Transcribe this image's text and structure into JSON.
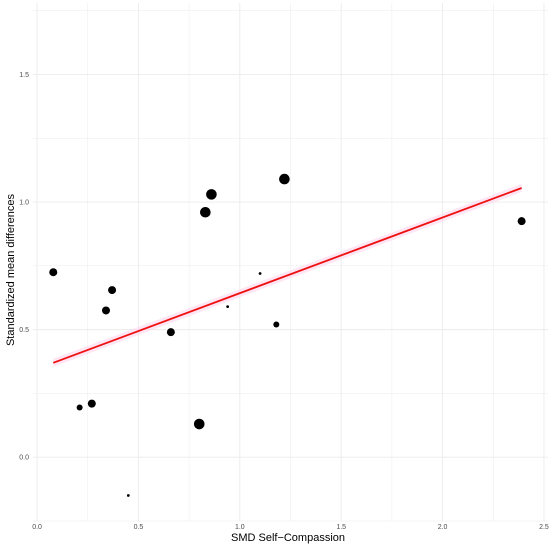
{
  "chart_data": {
    "type": "scatter",
    "title": "",
    "xlabel": "SMD Self−Compassion",
    "ylabel": "Standardized mean differences",
    "xlim": [
      -0.02,
      2.52
    ],
    "ylim": [
      -0.25,
      1.78
    ],
    "x_ticks": [
      0.0,
      0.5,
      1.0,
      1.5,
      2.0,
      2.5
    ],
    "x_tick_labels": [
      "0.0",
      "0.5",
      "1.0",
      "1.5",
      "2.0",
      "2.5"
    ],
    "y_ticks": [
      0.0,
      0.5,
      1.0,
      1.5
    ],
    "y_tick_labels": [
      "0.0",
      "0.5",
      "1.0",
      "1.5"
    ],
    "grid": true,
    "points": [
      {
        "x": 0.08,
        "y": 0.725,
        "size": "medium"
      },
      {
        "x": 0.21,
        "y": 0.195,
        "size": "small"
      },
      {
        "x": 0.27,
        "y": 0.21,
        "size": "medium"
      },
      {
        "x": 0.34,
        "y": 0.575,
        "size": "medium"
      },
      {
        "x": 0.37,
        "y": 0.655,
        "size": "medium"
      },
      {
        "x": 0.45,
        "y": -0.15,
        "size": "tiny"
      },
      {
        "x": 0.66,
        "y": 0.49,
        "size": "medium"
      },
      {
        "x": 0.8,
        "y": 0.13,
        "size": "large"
      },
      {
        "x": 0.83,
        "y": 0.96,
        "size": "large"
      },
      {
        "x": 0.86,
        "y": 1.03,
        "size": "large"
      },
      {
        "x": 0.94,
        "y": 0.59,
        "size": "tiny"
      },
      {
        "x": 1.1,
        "y": 0.72,
        "size": "tiny"
      },
      {
        "x": 1.18,
        "y": 0.52,
        "size": "small"
      },
      {
        "x": 1.22,
        "y": 1.09,
        "size": "large"
      },
      {
        "x": 2.39,
        "y": 0.925,
        "size": "medium"
      }
    ],
    "regression_line": {
      "x": [
        0.08,
        2.39
      ],
      "y": [
        0.37,
        1.055
      ],
      "color": "#ee1111"
    },
    "confidence_band_color": "#ffd6ee",
    "point_color": "#000000",
    "grid_color": "#ebebeb"
  }
}
